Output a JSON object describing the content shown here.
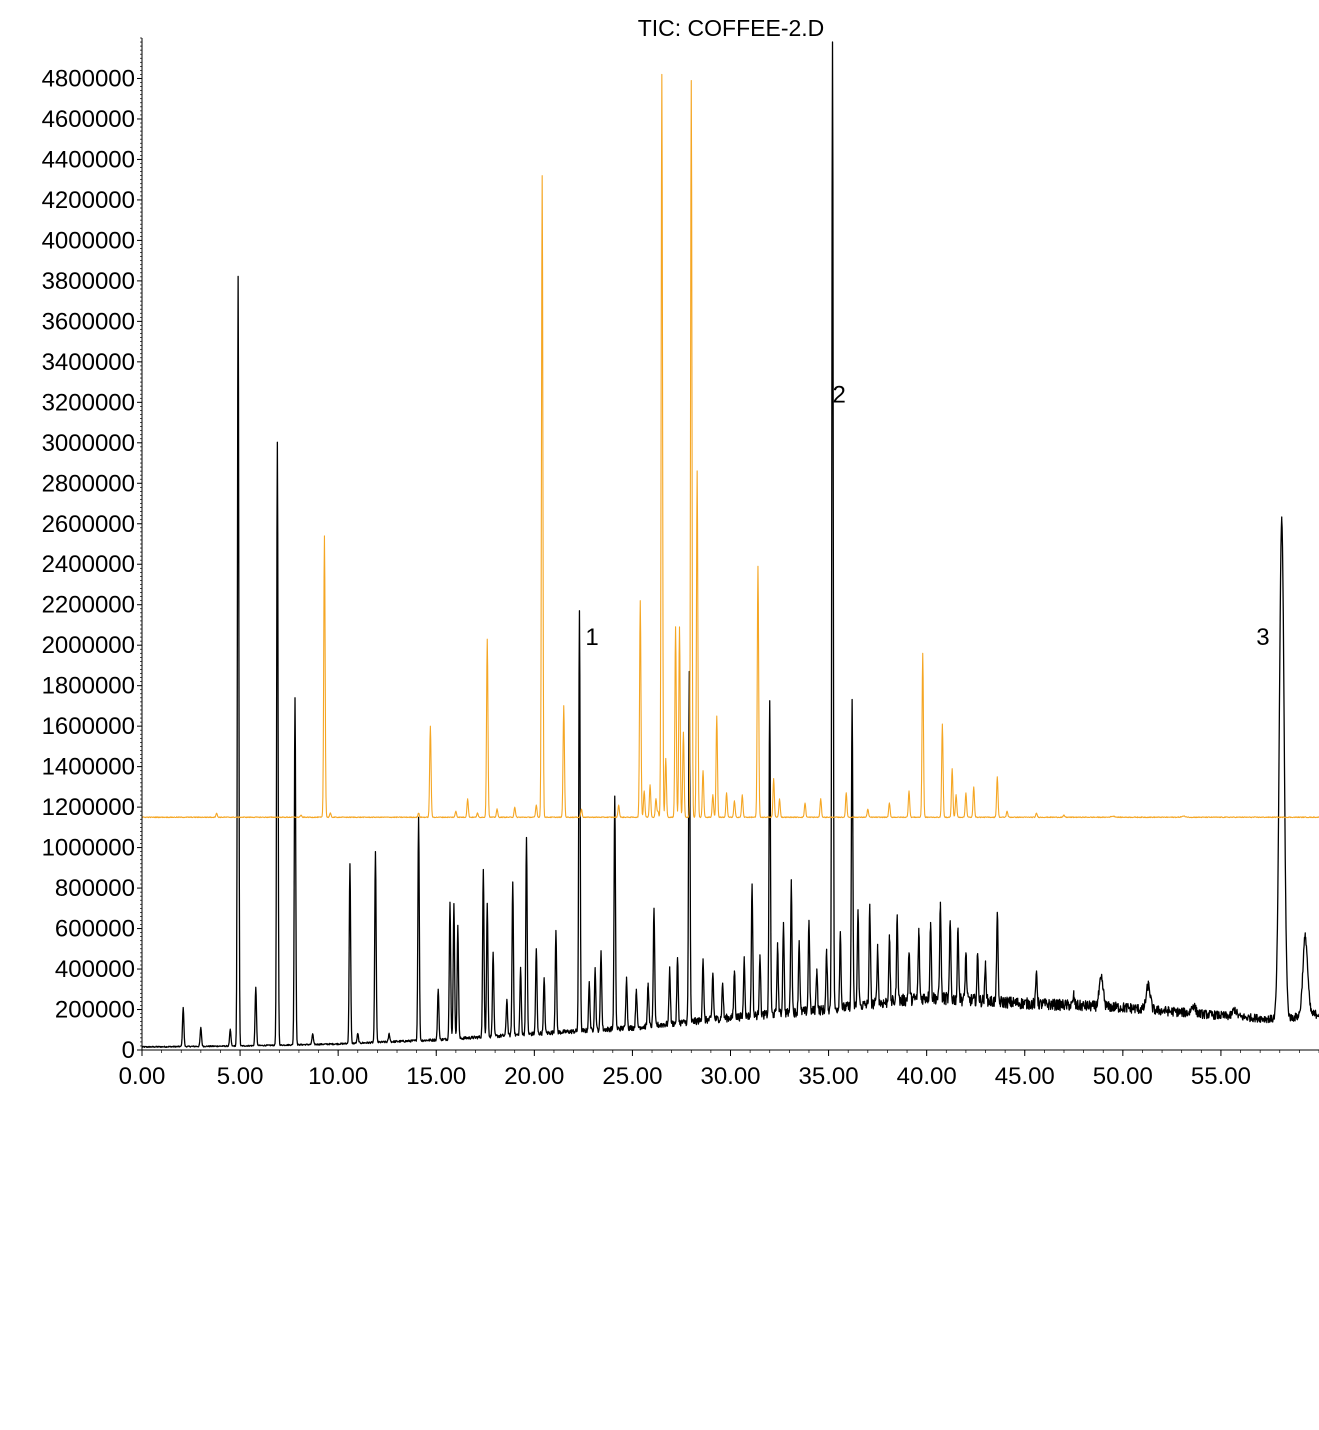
{
  "chart_data": {
    "type": "line",
    "title": "TIC: COFFEE-2.D",
    "xlabel": "",
    "ylabel": "",
    "xlim": [
      0,
      60
    ],
    "ylim": [
      0,
      5000000
    ],
    "x_ticks": [
      "0.00",
      "5.00",
      "10.00",
      "15.00",
      "20.00",
      "25.00",
      "30.00",
      "35.00",
      "40.00",
      "45.00",
      "50.00",
      "55.00"
    ],
    "x_tick_values": [
      0,
      5,
      10,
      15,
      20,
      25,
      30,
      35,
      40,
      45,
      50,
      55
    ],
    "y_ticks": [
      "0",
      "200000",
      "400000",
      "600000",
      "800000",
      "1000000",
      "1200000",
      "1400000",
      "1600000",
      "1800000",
      "2000000",
      "2200000",
      "2400000",
      "2600000",
      "2800000",
      "3000000",
      "3200000",
      "3400000",
      "3600000",
      "3800000",
      "4000000",
      "4200000",
      "4400000",
      "4600000",
      "4800000"
    ],
    "y_tick_values": [
      0,
      200000,
      400000,
      600000,
      800000,
      1000000,
      1200000,
      1400000,
      1600000,
      1800000,
      2000000,
      2200000,
      2400000,
      2600000,
      2800000,
      3000000,
      3200000,
      3400000,
      3600000,
      3800000,
      4000000,
      4200000,
      4400000,
      4600000,
      4800000
    ],
    "grid": false,
    "legend": "none",
    "annotations": [
      {
        "text": "1",
        "x": 22.6,
        "y": 2000000
      },
      {
        "text": "2",
        "x": 35.2,
        "y": 3200000
      },
      {
        "text": "3",
        "x": 56.8,
        "y": 2000000
      }
    ],
    "series": [
      {
        "color": "#000000",
        "baseline": [
          [
            0,
            15000
          ],
          [
            5,
            20000
          ],
          [
            10,
            30000
          ],
          [
            15,
            50000
          ],
          [
            20,
            80000
          ],
          [
            25,
            110000
          ],
          [
            30,
            160000
          ],
          [
            35,
            200000
          ],
          [
            40,
            260000
          ],
          [
            45,
            230000
          ],
          [
            50,
            210000
          ],
          [
            55,
            170000
          ],
          [
            58,
            150000
          ],
          [
            60,
            180000
          ]
        ],
        "peaks": [
          [
            2.1,
            210000
          ],
          [
            3.0,
            110000
          ],
          [
            4.5,
            100000
          ],
          [
            4.9,
            3820000
          ],
          [
            5.8,
            310000
          ],
          [
            6.9,
            3000000
          ],
          [
            7.8,
            1740000
          ],
          [
            8.7,
            80000
          ],
          [
            10.6,
            920000
          ],
          [
            11.0,
            80000
          ],
          [
            11.9,
            980000
          ],
          [
            12.6,
            80000
          ],
          [
            14.1,
            1150000
          ],
          [
            15.1,
            300000
          ],
          [
            15.7,
            730000
          ],
          [
            15.9,
            720000
          ],
          [
            16.1,
            610000
          ],
          [
            17.4,
            890000
          ],
          [
            17.6,
            720000
          ],
          [
            17.9,
            480000
          ],
          [
            18.6,
            250000
          ],
          [
            18.9,
            830000
          ],
          [
            19.3,
            400000
          ],
          [
            19.6,
            1050000
          ],
          [
            20.1,
            500000
          ],
          [
            20.5,
            350000
          ],
          [
            21.1,
            590000
          ],
          [
            22.3,
            2170000
          ],
          [
            22.8,
            330000
          ],
          [
            23.1,
            400000
          ],
          [
            23.4,
            490000
          ],
          [
            24.1,
            1250000
          ],
          [
            24.7,
            360000
          ],
          [
            25.2,
            300000
          ],
          [
            25.8,
            330000
          ],
          [
            26.1,
            700000
          ],
          [
            26.9,
            400000
          ],
          [
            27.3,
            450000
          ],
          [
            27.9,
            1870000
          ],
          [
            28.6,
            450000
          ],
          [
            29.1,
            380000
          ],
          [
            29.6,
            330000
          ],
          [
            30.2,
            390000
          ],
          [
            30.7,
            450000
          ],
          [
            31.1,
            820000
          ],
          [
            31.5,
            470000
          ],
          [
            32.0,
            1720000
          ],
          [
            32.4,
            510000
          ],
          [
            32.7,
            630000
          ],
          [
            33.1,
            820000
          ],
          [
            33.5,
            540000
          ],
          [
            34.0,
            640000
          ],
          [
            34.4,
            400000
          ],
          [
            34.9,
            480000
          ],
          [
            35.2,
            4980000
          ],
          [
            35.6,
            580000
          ],
          [
            36.2,
            1730000
          ],
          [
            36.5,
            680000
          ],
          [
            37.1,
            700000
          ],
          [
            37.5,
            500000
          ],
          [
            38.1,
            550000
          ],
          [
            38.5,
            660000
          ],
          [
            39.1,
            480000
          ],
          [
            39.6,
            580000
          ],
          [
            40.2,
            630000
          ],
          [
            40.7,
            730000
          ],
          [
            41.2,
            630000
          ],
          [
            41.6,
            600000
          ],
          [
            42.0,
            480000
          ],
          [
            42.6,
            470000
          ],
          [
            43.0,
            420000
          ],
          [
            43.6,
            680000
          ],
          [
            45.6,
            390000
          ],
          [
            47.5,
            270000
          ],
          [
            48.9,
            350000
          ],
          [
            51.3,
            320000
          ],
          [
            53.6,
            220000
          ],
          [
            55.7,
            200000
          ],
          [
            58.1,
            2620000
          ],
          [
            59.3,
            560000
          ]
        ]
      },
      {
        "color": "#f5a623",
        "baseline": [
          [
            0,
            1150000
          ],
          [
            60,
            1150000
          ]
        ],
        "peaks": [
          [
            3.8,
            1170000
          ],
          [
            8.1,
            1160000
          ],
          [
            9.3,
            2540000
          ],
          [
            9.6,
            1170000
          ],
          [
            14.1,
            1170000
          ],
          [
            14.7,
            1600000
          ],
          [
            16.0,
            1180000
          ],
          [
            16.6,
            1240000
          ],
          [
            17.1,
            1170000
          ],
          [
            17.6,
            2030000
          ],
          [
            18.1,
            1190000
          ],
          [
            19.0,
            1200000
          ],
          [
            20.1,
            1210000
          ],
          [
            20.4,
            4320000
          ],
          [
            21.5,
            1700000
          ],
          [
            22.4,
            1190000
          ],
          [
            24.3,
            1210000
          ],
          [
            25.4,
            2220000
          ],
          [
            25.6,
            1280000
          ],
          [
            25.9,
            1310000
          ],
          [
            26.2,
            1240000
          ],
          [
            26.3,
            1180000
          ],
          [
            26.5,
            4820000
          ],
          [
            26.7,
            1440000
          ],
          [
            27.2,
            2090000
          ],
          [
            27.4,
            2090000
          ],
          [
            27.6,
            1570000
          ],
          [
            28.0,
            4790000
          ],
          [
            28.3,
            2860000
          ],
          [
            28.6,
            1380000
          ],
          [
            29.1,
            1260000
          ],
          [
            29.3,
            1650000
          ],
          [
            29.8,
            1270000
          ],
          [
            30.2,
            1230000
          ],
          [
            30.6,
            1260000
          ],
          [
            31.4,
            2390000
          ],
          [
            32.2,
            1340000
          ],
          [
            32.5,
            1240000
          ],
          [
            33.8,
            1220000
          ],
          [
            34.6,
            1240000
          ],
          [
            35.9,
            1270000
          ],
          [
            37.0,
            1190000
          ],
          [
            38.1,
            1220000
          ],
          [
            39.1,
            1280000
          ],
          [
            39.8,
            1960000
          ],
          [
            40.8,
            1610000
          ],
          [
            41.3,
            1390000
          ],
          [
            41.5,
            1260000
          ],
          [
            42.0,
            1270000
          ],
          [
            42.4,
            1300000
          ],
          [
            43.6,
            1350000
          ],
          [
            44.1,
            1180000
          ],
          [
            45.6,
            1170000
          ],
          [
            47.0,
            1160000
          ],
          [
            49.5,
            1155000
          ],
          [
            53.1,
            1155000
          ]
        ]
      }
    ]
  }
}
